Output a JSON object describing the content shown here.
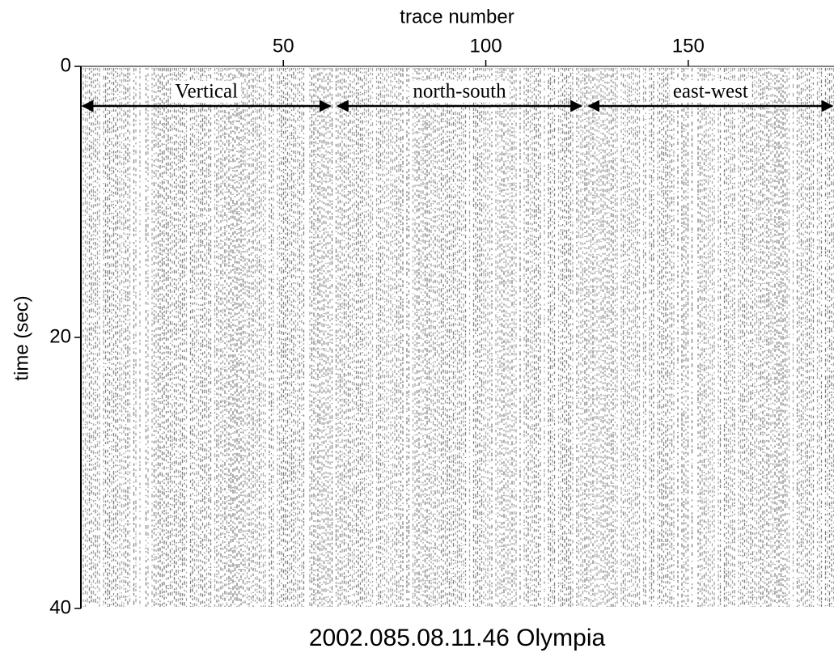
{
  "chart_data": {
    "type": "seismogram",
    "xlabel": "trace number",
    "ylabel": "time (sec)",
    "footer": "2002.085.08.11.46 Olympia",
    "xlim": [
      0,
      186
    ],
    "xticks": [
      50,
      100,
      150
    ],
    "ylim": [
      0,
      40
    ],
    "yticks": [
      0,
      20,
      40
    ],
    "annotations": [
      {
        "text": "Vertical",
        "x": [
          0,
          62
        ]
      },
      {
        "text": "north-south",
        "x": [
          63,
          124
        ]
      },
      {
        "text": "east-west",
        "x": [
          125,
          186
        ]
      }
    ]
  }
}
